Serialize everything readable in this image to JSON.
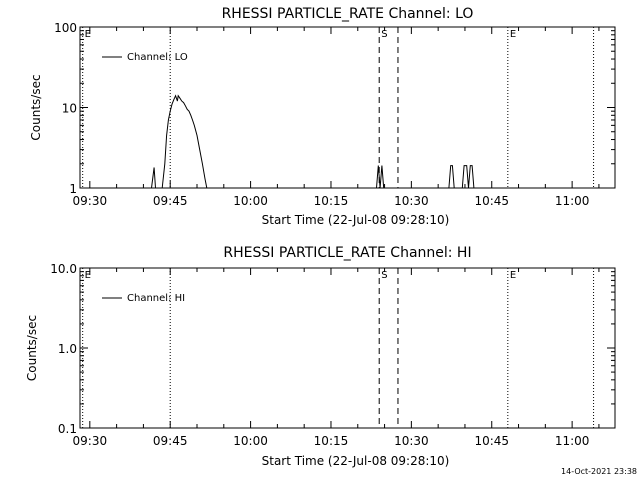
{
  "chart_data": [
    {
      "type": "line",
      "title": "RHESSI PARTICLE_RATE Channel: LO",
      "xlabel": "Start Time (22-Jul-08 09:28:10)",
      "ylabel": "Counts/sec",
      "yscale": "log",
      "ylim": [
        1,
        100
      ],
      "xlim": [
        "09:28:10",
        "11:08:00"
      ],
      "xticks": [
        "09:30",
        "09:45",
        "10:00",
        "10:15",
        "10:30",
        "10:45",
        "11:00"
      ],
      "yticks": [
        "1",
        "10",
        "100"
      ],
      "legend": {
        "position": "top-left",
        "label": "Channel: LO"
      },
      "markers": [
        {
          "time": "09:28:40",
          "label": "E",
          "style": "dotted"
        },
        {
          "time": "09:45:00",
          "label": "",
          "style": "dotted"
        },
        {
          "time": "10:24:00",
          "label": "S",
          "style": "dashed"
        },
        {
          "time": "10:27:30",
          "label": "",
          "style": "dashed"
        },
        {
          "time": "10:48:00",
          "label": "E",
          "style": "dotted"
        },
        {
          "time": "11:04:00",
          "label": "",
          "style": "dotted"
        }
      ],
      "series": [
        {
          "name": "Channel: LO",
          "segments": [
            [
              [
                "09:41:30",
                1
              ],
              [
                "09:42:00",
                1.8
              ],
              [
                "09:42:15",
                1
              ]
            ],
            [
              [
                "09:43:30",
                1
              ],
              [
                "09:44:00",
                2
              ],
              [
                "09:44:20",
                4.5
              ],
              [
                "09:44:40",
                7
              ],
              [
                "09:45:00",
                9
              ],
              [
                "09:45:20",
                11
              ],
              [
                "09:45:40",
                12.5
              ],
              [
                "09:46:00",
                14
              ],
              [
                "09:46:20",
                12
              ],
              [
                "09:46:30",
                14
              ],
              [
                "09:46:50",
                13
              ],
              [
                "09:47:10",
                12
              ],
              [
                "09:47:30",
                11.5
              ],
              [
                "09:47:50",
                10.5
              ],
              [
                "09:48:10",
                9.5
              ],
              [
                "09:48:30",
                9
              ],
              [
                "09:48:50",
                8
              ],
              [
                "09:49:10",
                7
              ],
              [
                "09:49:30",
                6
              ],
              [
                "09:50:00",
                4.5
              ],
              [
                "09:50:30",
                3
              ],
              [
                "09:51:00",
                2
              ],
              [
                "09:51:30",
                1.3
              ],
              [
                "09:51:50",
                1
              ]
            ],
            [
              [
                "10:23:30",
                1
              ],
              [
                "10:23:50",
                1.9
              ],
              [
                "10:24:10",
                1
              ],
              [
                "10:24:30",
                1.9
              ],
              [
                "10:24:50",
                1
              ]
            ],
            [
              [
                "10:37:00",
                1
              ],
              [
                "10:37:20",
                1.9
              ],
              [
                "10:37:40",
                1.9
              ],
              [
                "10:38:00",
                1
              ]
            ],
            [
              [
                "10:39:30",
                1
              ],
              [
                "10:39:50",
                1.9
              ],
              [
                "10:40:20",
                1.9
              ],
              [
                "10:40:40",
                1
              ],
              [
                "10:41:00",
                1.9
              ],
              [
                "10:41:20",
                1.9
              ],
              [
                "10:41:40",
                1
              ]
            ]
          ]
        }
      ]
    },
    {
      "type": "line",
      "title": "RHESSI PARTICLE_RATE Channel: HI",
      "xlabel": "Start Time (22-Jul-08 09:28:10)",
      "ylabel": "Counts/sec",
      "yscale": "log",
      "ylim": [
        0.1,
        10
      ],
      "xlim": [
        "09:28:10",
        "11:08:00"
      ],
      "xticks": [
        "09:30",
        "09:45",
        "10:00",
        "10:15",
        "10:30",
        "10:45",
        "11:00"
      ],
      "yticks": [
        "0.1",
        "1.0",
        "10.0"
      ],
      "legend": {
        "position": "top-left",
        "label": "Channel: HI"
      },
      "markers": [
        {
          "time": "09:28:40",
          "label": "E",
          "style": "dotted"
        },
        {
          "time": "09:45:00",
          "label": "",
          "style": "dotted"
        },
        {
          "time": "10:24:00",
          "label": "S",
          "style": "dashed"
        },
        {
          "time": "10:27:30",
          "label": "",
          "style": "dashed"
        },
        {
          "time": "10:48:00",
          "label": "E",
          "style": "dotted"
        },
        {
          "time": "11:04:00",
          "label": "",
          "style": "dotted"
        }
      ],
      "series": [
        {
          "name": "Channel: HI",
          "segments": []
        }
      ]
    }
  ],
  "footer": {
    "timestamp": "14-Oct-2021 23:38"
  }
}
